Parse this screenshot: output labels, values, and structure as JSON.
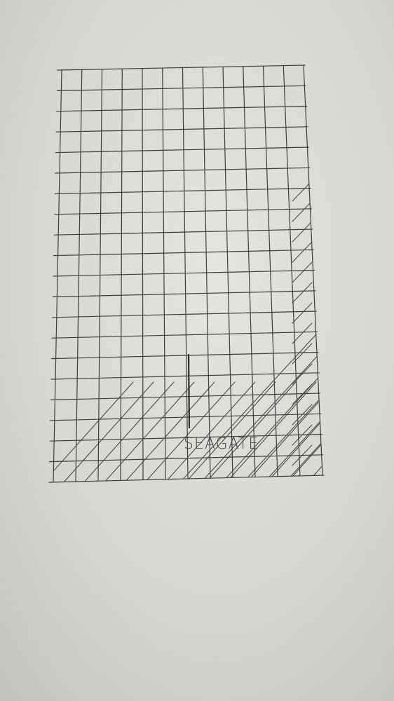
{
  "drawing": {
    "label": "SEAGATE",
    "colors": {
      "paper": "#dcdcd8",
      "ink": "#3d3d3d"
    }
  }
}
